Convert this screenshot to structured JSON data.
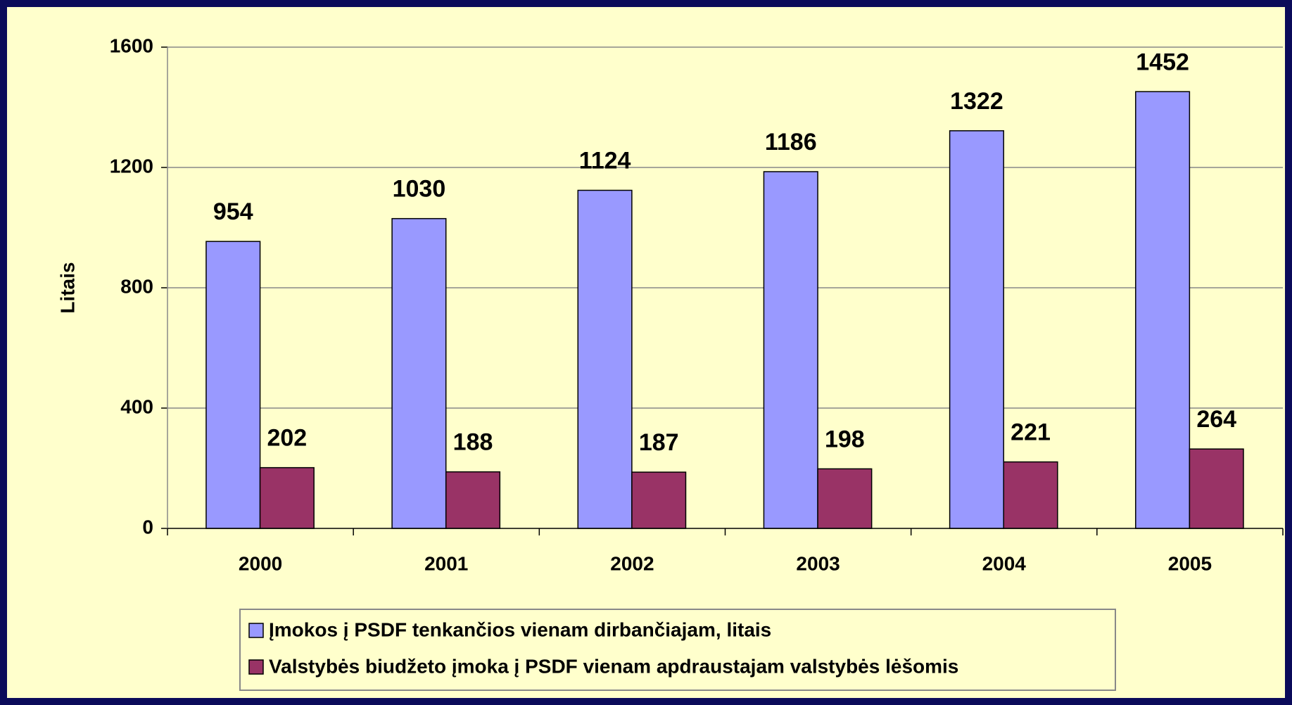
{
  "chart_data": {
    "type": "bar",
    "categories": [
      "2000",
      "2001",
      "2002",
      "2003",
      "2004",
      "2005"
    ],
    "series": [
      {
        "name": "Įmokos į PSDF tenkančios vienam dirbančiajam, litais",
        "color": "#9999ff",
        "values": [
          954,
          1030,
          1124,
          1186,
          1322,
          1452
        ]
      },
      {
        "name": "Valstybės biudžeto įmoka į PSDF vienam apdraustajam valstybės lėšomis",
        "color": "#993366",
        "values": [
          202,
          188,
          187,
          198,
          221,
          264
        ]
      }
    ],
    "y_label": "Litais",
    "ylim": [
      0,
      1600
    ],
    "yticks": [
      0,
      400,
      800,
      1200,
      1600
    ],
    "grid": true
  }
}
